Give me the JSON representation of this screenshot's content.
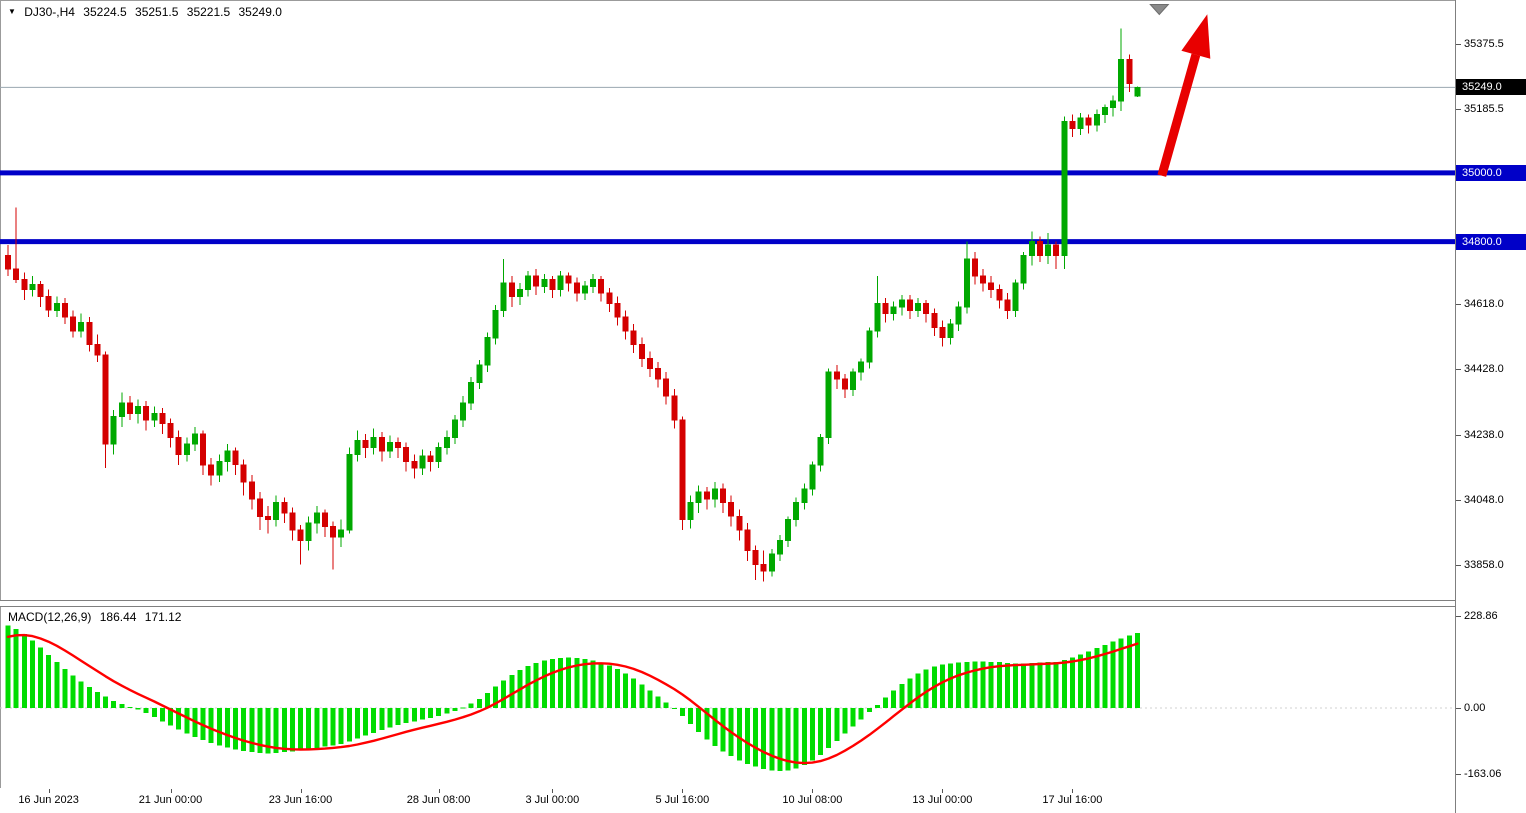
{
  "header": {
    "symbol_period": "DJ30-,H4",
    "open": "35224.5",
    "high": "35251.5",
    "low": "35221.5",
    "close": "35249.0"
  },
  "macd_panel": {
    "indicator_label": "MACD(12,26,9)",
    "macd_value": "186.44",
    "signal_value": "171.12"
  },
  "price_axis": {
    "ticks": [
      {
        "label": "35375.5",
        "value": 35375.5
      },
      {
        "label": "35185.5",
        "value": 35185.5
      },
      {
        "label": "34618.0",
        "value": 34618.0
      },
      {
        "label": "34428.0",
        "value": 34428.0
      },
      {
        "label": "34238.0",
        "value": 34238.0
      },
      {
        "label": "34048.0",
        "value": 34048.0
      },
      {
        "label": "33858.0",
        "value": 33858.0
      }
    ],
    "current": {
      "label": "35249.0",
      "value": 35249.0
    },
    "levels": [
      {
        "label": "35000.0",
        "value": 35000.0
      },
      {
        "label": "34800.0",
        "value": 34800.0
      }
    ]
  },
  "macd_axis": {
    "ticks": [
      {
        "label": "228.86",
        "value": 228.86
      },
      {
        "label": "0.00",
        "value": 0
      },
      {
        "label": "-163.06",
        "value": -163.06
      }
    ]
  },
  "time_axis": {
    "labels": [
      {
        "text": "16 Jun 2023",
        "bar": 5
      },
      {
        "text": "21 Jun 00:00",
        "bar": 20
      },
      {
        "text": "23 Jun 16:00",
        "bar": 36
      },
      {
        "text": "28 Jun 08:00",
        "bar": 53
      },
      {
        "text": "3 Jul 00:00",
        "bar": 67
      },
      {
        "text": "5 Jul 16:00",
        "bar": 83
      },
      {
        "text": "10 Jul 08:00",
        "bar": 99
      },
      {
        "text": "13 Jul 00:00",
        "bar": 115
      },
      {
        "text": "17 Jul 16:00",
        "bar": 131
      }
    ]
  },
  "colors": {
    "bull": "#00A800",
    "bear": "#D40000",
    "macd_histogram": "#00DC00",
    "signal_line": "#FF0000",
    "level_line": "#0000C8",
    "current_price_line": "#9AA7B0",
    "current_price_bg": "#000000",
    "arrow": "#E80000",
    "marker_gray": "#8A8A8A",
    "axis_text": "#000000"
  },
  "chart_data": {
    "type": "candlestick",
    "title": "DJ30- H4 candlestick chart with MACD(12,26,9)",
    "y_axis_range": [
      33700,
      35500
    ],
    "price_levels": [
      35000.0,
      34800.0
    ],
    "current_price": 35249.0,
    "candles_ohlc": [
      [
        34760,
        34790,
        34700,
        34720
      ],
      [
        34720,
        34900,
        34680,
        34690
      ],
      [
        34690,
        34710,
        34630,
        34660
      ],
      [
        34660,
        34700,
        34640,
        34675
      ],
      [
        34675,
        34685,
        34610,
        34640
      ],
      [
        34640,
        34660,
        34580,
        34600
      ],
      [
        34600,
        34640,
        34580,
        34620
      ],
      [
        34620,
        34635,
        34560,
        34580
      ],
      [
        34580,
        34600,
        34520,
        34540
      ],
      [
        34540,
        34590,
        34520,
        34565
      ],
      [
        34565,
        34580,
        34480,
        34500
      ],
      [
        34500,
        34530,
        34450,
        34470
      ],
      [
        34470,
        34480,
        34140,
        34210
      ],
      [
        34210,
        34310,
        34180,
        34290
      ],
      [
        34290,
        34360,
        34260,
        34330
      ],
      [
        34330,
        34350,
        34280,
        34300
      ],
      [
        34300,
        34340,
        34270,
        34320
      ],
      [
        34320,
        34335,
        34250,
        34280
      ],
      [
        34280,
        34320,
        34260,
        34300
      ],
      [
        34300,
        34315,
        34240,
        34270
      ],
      [
        34270,
        34285,
        34200,
        34230
      ],
      [
        34230,
        34250,
        34150,
        34180
      ],
      [
        34180,
        34230,
        34160,
        34210
      ],
      [
        34210,
        34260,
        34190,
        34240
      ],
      [
        34240,
        34250,
        34120,
        34150
      ],
      [
        34150,
        34170,
        34090,
        34120
      ],
      [
        34120,
        34180,
        34100,
        34160
      ],
      [
        34160,
        34210,
        34130,
        34190
      ],
      [
        34190,
        34200,
        34120,
        34150
      ],
      [
        34150,
        34165,
        34060,
        34100
      ],
      [
        34100,
        34120,
        34020,
        34050
      ],
      [
        34050,
        34070,
        33960,
        34000
      ],
      [
        34000,
        34030,
        33950,
        33990
      ],
      [
        33990,
        34060,
        33970,
        34040
      ],
      [
        34040,
        34055,
        33980,
        34010
      ],
      [
        34010,
        34025,
        33930,
        33960
      ],
      [
        33960,
        33975,
        33860,
        33930
      ],
      [
        33930,
        34000,
        33900,
        33980
      ],
      [
        33980,
        34030,
        33950,
        34010
      ],
      [
        34010,
        34020,
        33940,
        33970
      ],
      [
        33970,
        33985,
        33845,
        33940
      ],
      [
        33940,
        33990,
        33910,
        33960
      ],
      [
        33960,
        34200,
        33950,
        34180
      ],
      [
        34180,
        34250,
        34160,
        34220
      ],
      [
        34220,
        34240,
        34170,
        34200
      ],
      [
        34200,
        34255,
        34180,
        34230
      ],
      [
        34230,
        34245,
        34160,
        34190
      ],
      [
        34190,
        34235,
        34170,
        34215
      ],
      [
        34215,
        34230,
        34170,
        34200
      ],
      [
        34200,
        34215,
        34130,
        34160
      ],
      [
        34160,
        34180,
        34110,
        34140
      ],
      [
        34140,
        34195,
        34120,
        34175
      ],
      [
        34175,
        34190,
        34130,
        34160
      ],
      [
        34160,
        34215,
        34140,
        34200
      ],
      [
        34200,
        34250,
        34180,
        34230
      ],
      [
        34230,
        34295,
        34210,
        34280
      ],
      [
        34280,
        34350,
        34260,
        34330
      ],
      [
        34330,
        34405,
        34310,
        34390
      ],
      [
        34390,
        34455,
        34370,
        34440
      ],
      [
        34440,
        34535,
        34420,
        34520
      ],
      [
        34520,
        34615,
        34500,
        34600
      ],
      [
        34600,
        34750,
        34580,
        34680
      ],
      [
        34680,
        34700,
        34610,
        34640
      ],
      [
        34640,
        34680,
        34615,
        34660
      ],
      [
        34660,
        34715,
        34640,
        34700
      ],
      [
        34700,
        34720,
        34645,
        34670
      ],
      [
        34670,
        34705,
        34650,
        34690
      ],
      [
        34690,
        34700,
        34635,
        34660
      ],
      [
        34660,
        34715,
        34640,
        34700
      ],
      [
        34700,
        34710,
        34655,
        34680
      ],
      [
        34680,
        34695,
        34625,
        34650
      ],
      [
        34650,
        34685,
        34630,
        34670
      ],
      [
        34670,
        34705,
        34650,
        34690
      ],
      [
        34690,
        34700,
        34625,
        34650
      ],
      [
        34650,
        34665,
        34595,
        34620
      ],
      [
        34620,
        34640,
        34555,
        34580
      ],
      [
        34580,
        34600,
        34515,
        34540
      ],
      [
        34540,
        34560,
        34475,
        34500
      ],
      [
        34500,
        34520,
        34435,
        34460
      ],
      [
        34460,
        34480,
        34405,
        34430
      ],
      [
        34430,
        34450,
        34375,
        34400
      ],
      [
        34400,
        34420,
        34325,
        34350
      ],
      [
        34350,
        34370,
        34255,
        34280
      ],
      [
        34280,
        34290,
        33960,
        33990
      ],
      [
        33990,
        34060,
        33965,
        34040
      ],
      [
        34040,
        34090,
        34010,
        34070
      ],
      [
        34070,
        34085,
        34020,
        34050
      ],
      [
        34050,
        34100,
        34025,
        34080
      ],
      [
        34080,
        34095,
        34010,
        34040
      ],
      [
        34040,
        34060,
        33970,
        34000
      ],
      [
        34000,
        34020,
        33930,
        33960
      ],
      [
        33960,
        33980,
        33870,
        33900
      ],
      [
        33900,
        33915,
        33815,
        33860
      ],
      [
        33860,
        33900,
        33810,
        33840
      ],
      [
        33840,
        33905,
        33825,
        33890
      ],
      [
        33890,
        33945,
        33870,
        33930
      ],
      [
        33930,
        34000,
        33910,
        33990
      ],
      [
        33990,
        34055,
        33970,
        34040
      ],
      [
        34040,
        34095,
        34020,
        34080
      ],
      [
        34080,
        34160,
        34060,
        34150
      ],
      [
        34150,
        34240,
        34130,
        34230
      ],
      [
        34230,
        34430,
        34210,
        34420
      ],
      [
        34420,
        34440,
        34370,
        34400
      ],
      [
        34400,
        34415,
        34345,
        34370
      ],
      [
        34370,
        34430,
        34350,
        34420
      ],
      [
        34420,
        34460,
        34395,
        34450
      ],
      [
        34450,
        34550,
        34430,
        34540
      ],
      [
        34540,
        34700,
        34520,
        34620
      ],
      [
        34620,
        34635,
        34565,
        34590
      ],
      [
        34590,
        34625,
        34570,
        34610
      ],
      [
        34610,
        34645,
        34585,
        34630
      ],
      [
        34630,
        34645,
        34575,
        34600
      ],
      [
        34600,
        34635,
        34580,
        34620
      ],
      [
        34620,
        34630,
        34565,
        34590
      ],
      [
        34590,
        34605,
        34525,
        34550
      ],
      [
        34550,
        34570,
        34495,
        34520
      ],
      [
        34520,
        34575,
        34500,
        34560
      ],
      [
        34560,
        34625,
        34540,
        34610
      ],
      [
        34610,
        34800,
        34590,
        34750
      ],
      [
        34750,
        34770,
        34675,
        34700
      ],
      [
        34700,
        34720,
        34655,
        34680
      ],
      [
        34680,
        34700,
        34635,
        34660
      ],
      [
        34660,
        34675,
        34605,
        34630
      ],
      [
        34630,
        34650,
        34575,
        34600
      ],
      [
        34600,
        34690,
        34580,
        34680
      ],
      [
        34680,
        34770,
        34660,
        34760
      ],
      [
        34760,
        34830,
        34730,
        34800
      ],
      [
        34800,
        34815,
        34740,
        34760
      ],
      [
        34760,
        34825,
        34735,
        34790
      ],
      [
        34790,
        34800,
        34720,
        34760
      ],
      [
        34760,
        35165,
        34720,
        35150
      ],
      [
        35150,
        35170,
        35105,
        35130
      ],
      [
        35130,
        35175,
        35110,
        35160
      ],
      [
        35160,
        35170,
        35115,
        35140
      ],
      [
        35140,
        35185,
        35120,
        35170
      ],
      [
        35170,
        35200,
        35145,
        35190
      ],
      [
        35190,
        35225,
        35165,
        35210
      ],
      [
        35210,
        35420,
        35180,
        35330
      ],
      [
        35330,
        35345,
        35235,
        35260
      ],
      [
        35224.5,
        35251.5,
        35221.5,
        35249.0
      ]
    ],
    "macd": {
      "type": "bar+line",
      "signal_period": 9,
      "signal_seed": 170,
      "y_range": [
        -163.06,
        228.86
      ],
      "histogram": [
        205,
        196,
        184,
        168,
        150,
        132,
        114,
        97,
        81,
        66,
        52,
        40,
        28,
        18,
        10,
        3,
        -4,
        -12,
        -22,
        -33,
        -44,
        -54,
        -63,
        -72,
        -80,
        -87,
        -93,
        -98,
        -103,
        -107,
        -110,
        -112,
        -113,
        -112,
        -110,
        -108,
        -105,
        -102,
        -99,
        -96,
        -93,
        -89,
        -83,
        -76,
        -69,
        -62,
        -55,
        -48,
        -42,
        -37,
        -33,
        -29,
        -25,
        -20,
        -14,
        -7,
        1,
        11,
        23,
        37,
        53,
        68,
        82,
        94,
        104,
        112,
        118,
        122,
        125,
        126,
        125,
        122,
        118,
        113,
        106,
        97,
        86,
        73,
        59,
        44,
        29,
        14,
        -1,
        -20,
        -40,
        -60,
        -78,
        -94,
        -108,
        -120,
        -130,
        -139,
        -146,
        -152,
        -156,
        -157,
        -155,
        -150,
        -142,
        -131,
        -117,
        -100,
        -82,
        -64,
        -46,
        -28,
        -10,
        8,
        26,
        44,
        60,
        74,
        86,
        96,
        103,
        108,
        111,
        113,
        115,
        116,
        116,
        115,
        114,
        112,
        111,
        111,
        112,
        113,
        114,
        115,
        120,
        126,
        133,
        141,
        149,
        157,
        165,
        173,
        180,
        186.44
      ]
    },
    "annotations": {
      "trend_arrow": {
        "type": "arrow-up",
        "from": {
          "bar": 142,
          "price": 34992
        },
        "to": {
          "bar": 147.6,
          "price": 35462
        }
      },
      "top_marker": {
        "type": "triangle-down",
        "bar": 141.7,
        "price": 35476
      }
    }
  }
}
